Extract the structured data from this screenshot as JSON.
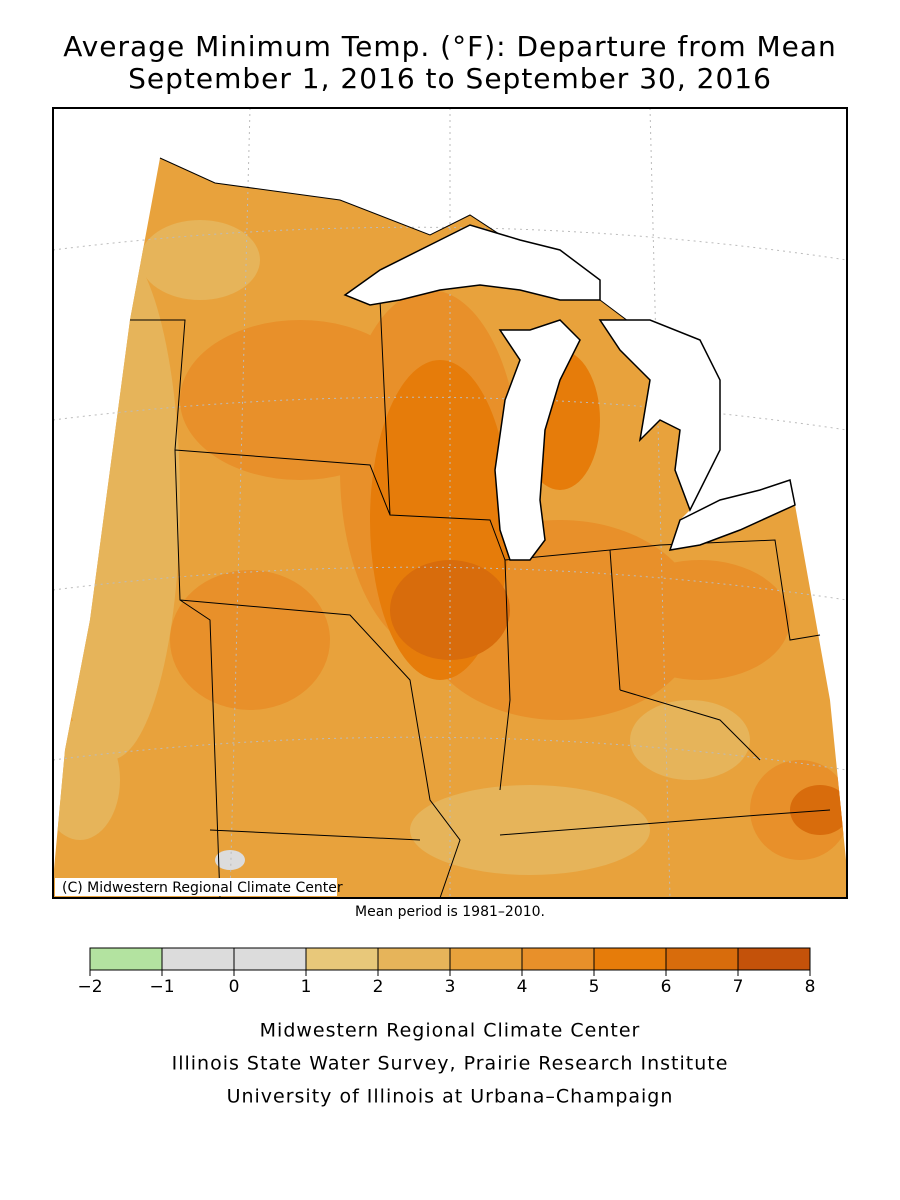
{
  "title": [
    "Average Minimum Temp. (°F): Departure from Mean",
    "September 1, 2016 to September 30, 2016"
  ],
  "copyright": "(C) Midwestern Regional Climate Center",
  "note": "Mean period is 1981–2010.",
  "legend": {
    "ticks": [
      {
        "value": -2,
        "label": "−2"
      },
      {
        "value": -1,
        "label": "−1"
      },
      0,
      1,
      2,
      3,
      4,
      5,
      6,
      7,
      8
    ],
    "colors": [
      "#b3e3a0",
      "#dcdcdc",
      "#dcdcdc",
      "#e8c87a",
      "#e6b45a",
      "#e8a23c",
      "#e8902a",
      "#e67c0a",
      "#d86c0c",
      "#c4520a"
    ]
  },
  "footer": [
    "Midwestern Regional Climate Center",
    "Illinois State Water Survey, Prairie Research Institute",
    "University of Illinois at Urbana–Champaign"
  ]
}
